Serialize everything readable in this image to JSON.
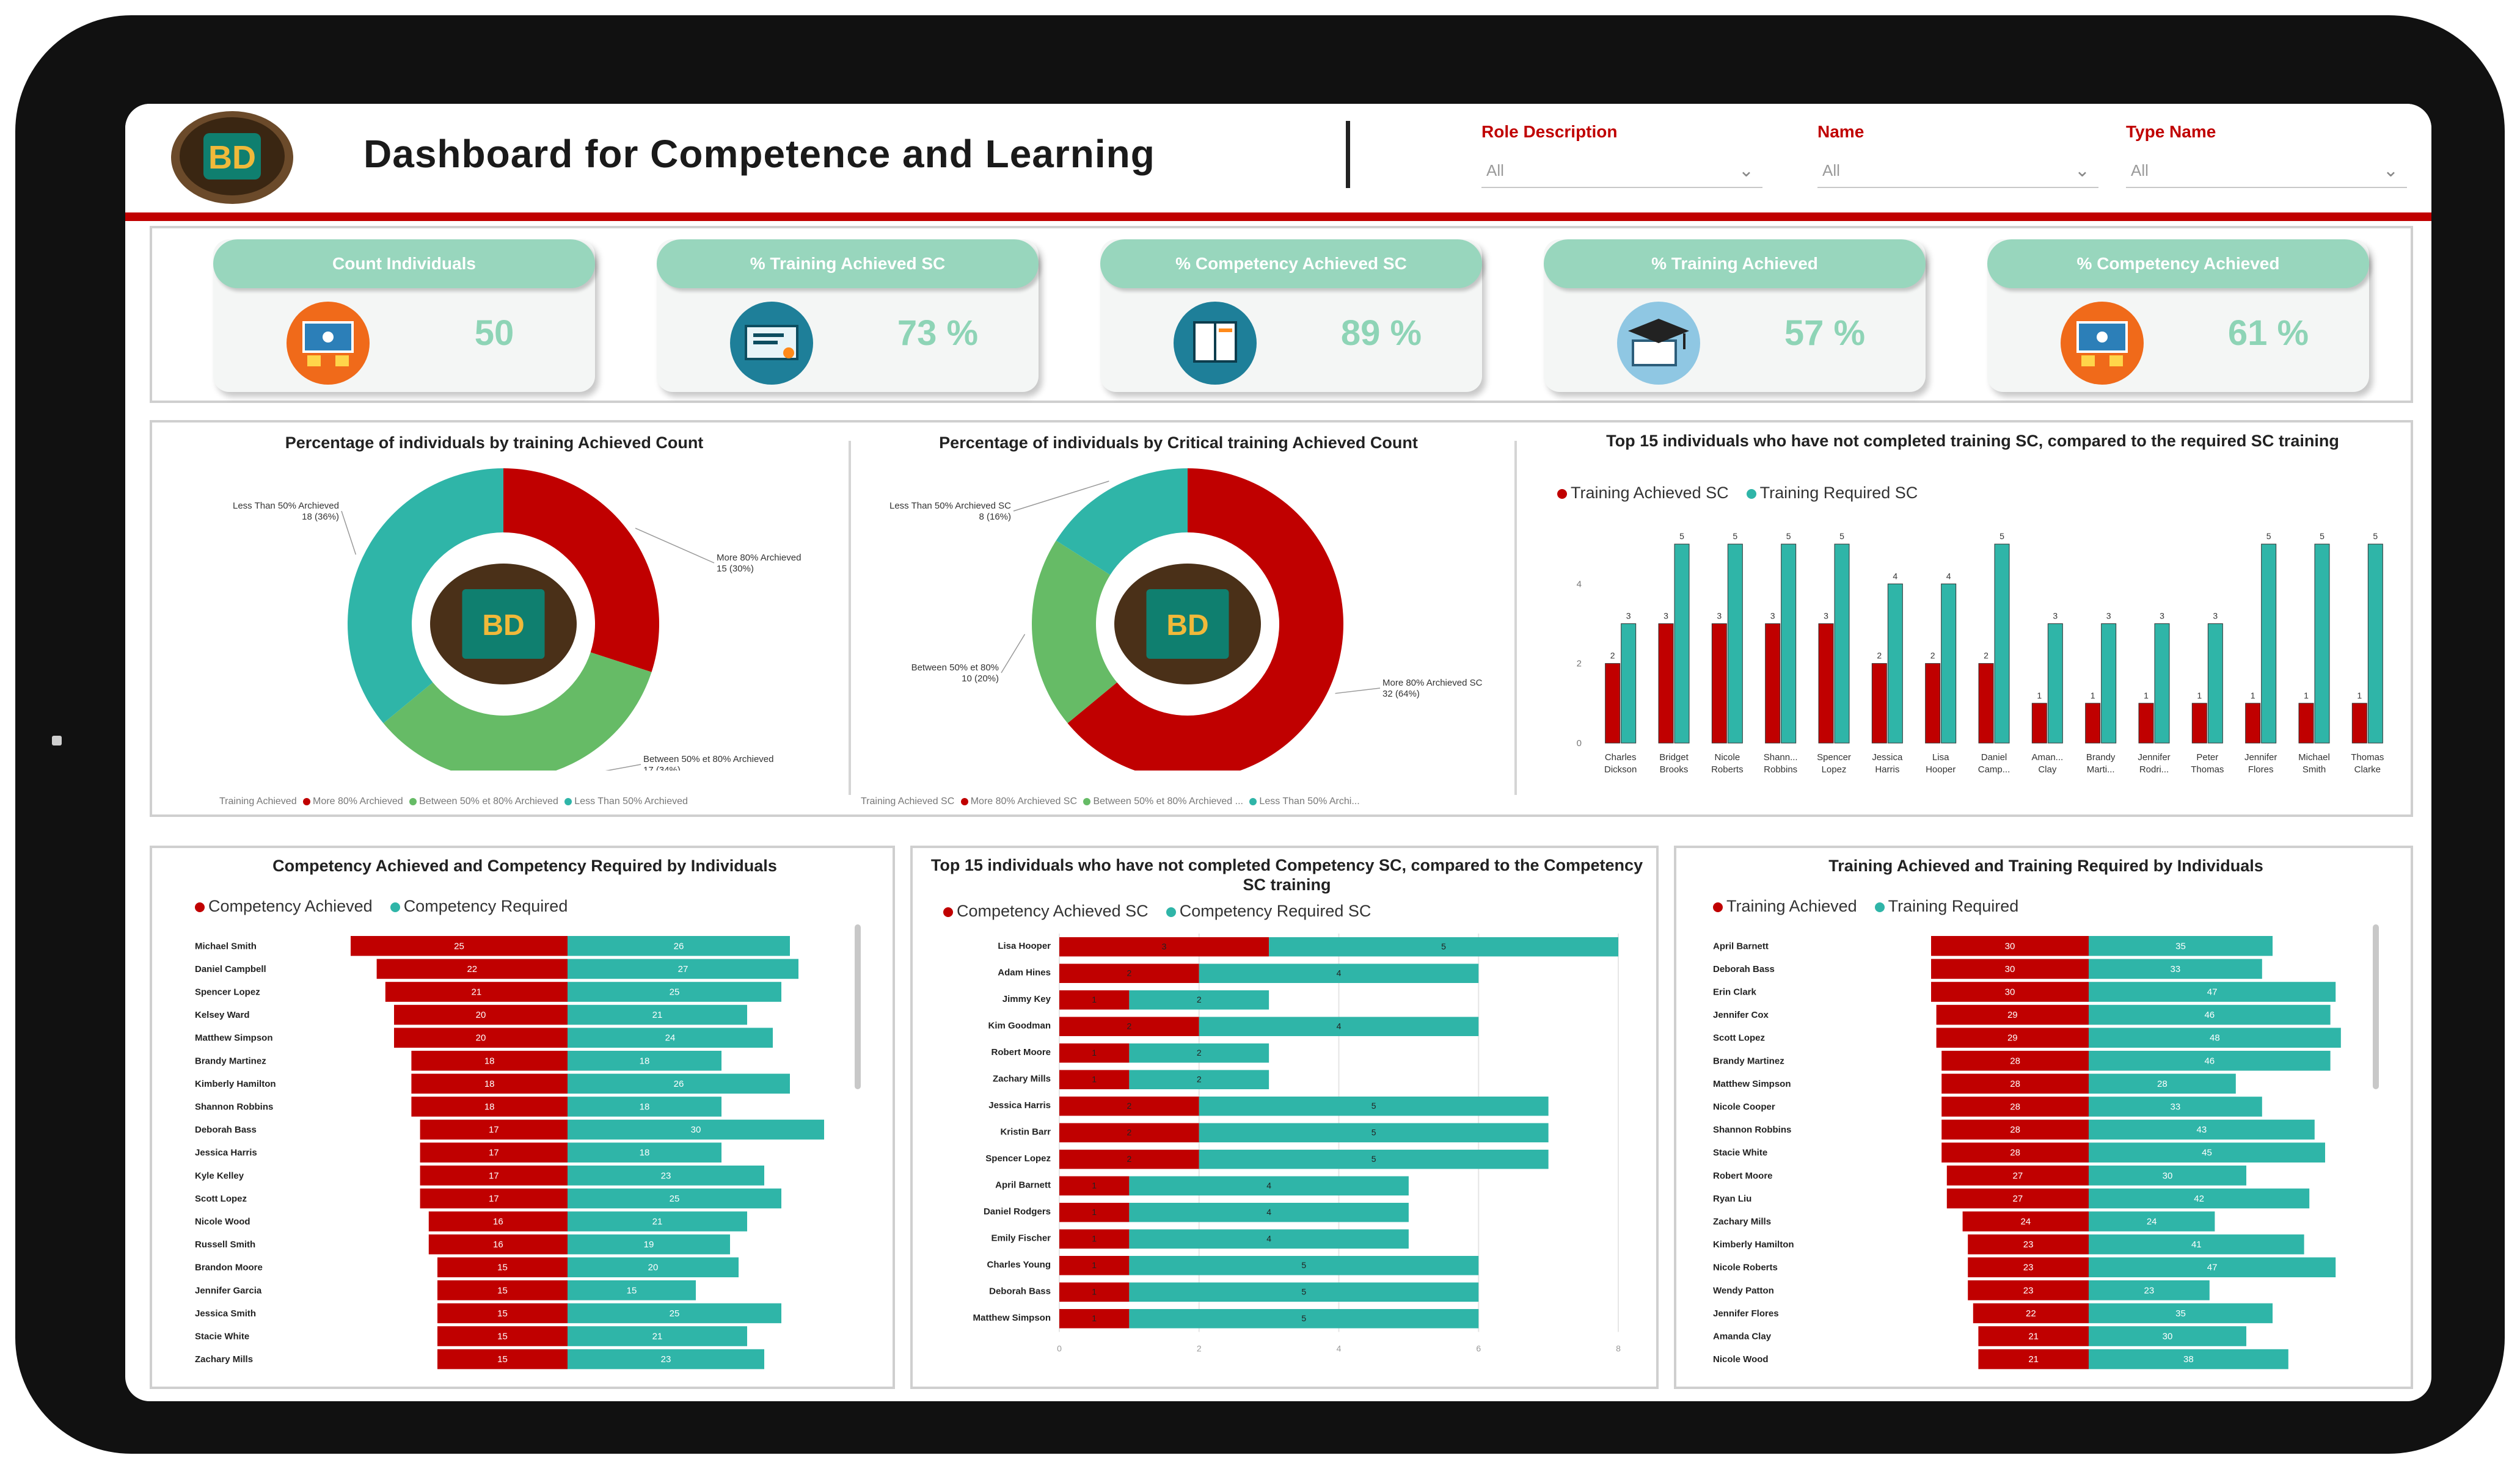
{
  "header": {
    "title": "Dashboard for Competence and Learning",
    "logo_text": "BD",
    "slicers": [
      {
        "label": "Role Description",
        "value": "All"
      },
      {
        "label": "Name",
        "value": "All"
      },
      {
        "label": "Type Name",
        "value": "All"
      }
    ]
  },
  "kpis": [
    {
      "label": "Count Individuals",
      "value": "50",
      "icon": "training-icon"
    },
    {
      "label": "% Training Achieved SC",
      "value": "73 %",
      "icon": "certificate-icon"
    },
    {
      "label": "% Competency Achieved SC",
      "value": "89 %",
      "icon": "book-icon"
    },
    {
      "label": "% Training Achieved",
      "value": "57 %",
      "icon": "graduation-cap-icon"
    },
    {
      "label": "% Competency Achieved",
      "value": "61 %",
      "icon": "training-icon"
    }
  ],
  "colors": {
    "red": "#c00000",
    "teal": "#2fb5a8",
    "green": "#66bb66",
    "kpi_pill": "#98d6bd",
    "accent": "#c00000"
  },
  "chart_data": [
    {
      "type": "pie",
      "title": "Percentage of individuals by training Achieved Count",
      "legend_title": "Training Achieved",
      "categories": [
        "More 80% Archieved",
        "Between 50% et 80% Archieved",
        "Less Than 50% Archieved"
      ],
      "values": [
        15,
        17,
        18
      ],
      "labels": [
        "15 (30%)",
        "17 (34%)",
        "18 (36%)"
      ],
      "colors": [
        "#c00000",
        "#66bb66",
        "#2fb5a8"
      ]
    },
    {
      "type": "pie",
      "title": "Percentage of individuals by Critical training Achieved Count",
      "legend_title": "Training Achieved SC",
      "categories": [
        "More 80% Archieved SC",
        "Between 50% et 80%",
        "Less Than 50% Archieved SC"
      ],
      "legend_labels": [
        "More 80% Archieved SC",
        "Between 50% et 80% Archieved ...",
        "Less Than 50% Archi..."
      ],
      "values": [
        32,
        10,
        8
      ],
      "labels": [
        "32 (64%)",
        "10 (20%)",
        "8 (16%)"
      ],
      "colors": [
        "#c00000",
        "#66bb66",
        "#2fb5a8"
      ]
    },
    {
      "type": "bar",
      "title": "Top 15 individuals who have not completed training SC, compared to the required SC training",
      "categories": [
        "Charles Dickson",
        "Bridget Brooks",
        "Nicole Roberts",
        "Shann... Robbins",
        "Spencer Lopez",
        "Jessica Harris",
        "Lisa Hooper",
        "Daniel Camp...",
        "Aman... Clay",
        "Brandy Marti...",
        "Jennifer Rodri...",
        "Peter Thomas",
        "Jennifer Flores",
        "Michael Smith",
        "Thomas Clarke"
      ],
      "series": [
        {
          "name": "Training Achieved SC",
          "values": [
            2,
            3,
            3,
            3,
            3,
            2,
            2,
            2,
            1,
            1,
            1,
            1,
            1,
            1,
            1
          ]
        },
        {
          "name": "Training Required SC",
          "values": [
            3,
            5,
            5,
            5,
            5,
            4,
            4,
            5,
            3,
            3,
            3,
            3,
            5,
            5,
            5
          ]
        }
      ],
      "yticks": [
        0,
        2,
        4
      ],
      "ylim": [
        0,
        5.6
      ]
    },
    {
      "type": "bar",
      "orientation": "horizontal-diverging",
      "title": "Competency Achieved and Competency Required by Individuals",
      "categories": [
        "Michael Smith",
        "Daniel Campbell",
        "Spencer Lopez",
        "Kelsey Ward",
        "Matthew Simpson",
        "Brandy Martinez",
        "Kimberly Hamilton",
        "Shannon Robbins",
        "Deborah Bass",
        "Jessica Harris",
        "Kyle Kelley",
        "Scott Lopez",
        "Nicole Wood",
        "Russell Smith",
        "Brandon Moore",
        "Jennifer Garcia",
        "Jessica Smith",
        "Stacie White",
        "Zachary Mills"
      ],
      "series": [
        {
          "name": "Competency Achieved",
          "values": [
            25,
            22,
            21,
            20,
            20,
            18,
            18,
            18,
            17,
            17,
            17,
            17,
            16,
            16,
            15,
            15,
            15,
            15,
            15
          ]
        },
        {
          "name": "Competency Required",
          "values": [
            26,
            27,
            25,
            21,
            24,
            18,
            26,
            18,
            30,
            18,
            23,
            25,
            21,
            19,
            20,
            15,
            25,
            21,
            23
          ]
        }
      ]
    },
    {
      "type": "bar",
      "orientation": "horizontal-stacked",
      "title": "Top 15 individuals who have not completed Competency SC, compared to the Competency SC training",
      "categories": [
        "Lisa Hooper",
        "Adam Hines",
        "Jimmy Key",
        "Kim Goodman",
        "Robert Moore",
        "Zachary Mills",
        "Jessica Harris",
        "Kristin Barr",
        "Spencer Lopez",
        "April Barnett",
        "Daniel Rodgers",
        "Emily Fischer",
        "Charles Young",
        "Deborah Bass",
        "Matthew Simpson"
      ],
      "series": [
        {
          "name": "Competency Achieved SC",
          "values": [
            3,
            2,
            1,
            2,
            1,
            1,
            2,
            2,
            2,
            1,
            1,
            1,
            1,
            1,
            1
          ]
        },
        {
          "name": "Competency Required SC",
          "values": [
            5,
            4,
            2,
            4,
            2,
            2,
            5,
            5,
            5,
            4,
            4,
            4,
            5,
            5,
            5
          ]
        }
      ],
      "xticks": [
        0,
        2,
        4,
        6,
        8
      ],
      "xlim": [
        0,
        8
      ]
    },
    {
      "type": "bar",
      "orientation": "horizontal-diverging",
      "title": "Training Achieved and Training Required by Individuals",
      "categories": [
        "April Barnett",
        "Deborah Bass",
        "Erin Clark",
        "Jennifer Cox",
        "Scott Lopez",
        "Brandy Martinez",
        "Matthew Simpson",
        "Nicole Cooper",
        "Shannon Robbins",
        "Stacie White",
        "Robert Moore",
        "Ryan Liu",
        "Zachary Mills",
        "Kimberly Hamilton",
        "Nicole Roberts",
        "Wendy Patton",
        "Jennifer Flores",
        "Amanda Clay",
        "Nicole Wood"
      ],
      "series": [
        {
          "name": "Training Achieved",
          "values": [
            30,
            30,
            30,
            29,
            29,
            28,
            28,
            28,
            28,
            28,
            27,
            27,
            24,
            23,
            23,
            23,
            22,
            21,
            21
          ]
        },
        {
          "name": "Training Required",
          "values": [
            35,
            33,
            47,
            46,
            48,
            46,
            28,
            33,
            43,
            45,
            30,
            42,
            24,
            41,
            47,
            23,
            35,
            30,
            38
          ]
        }
      ]
    }
  ]
}
